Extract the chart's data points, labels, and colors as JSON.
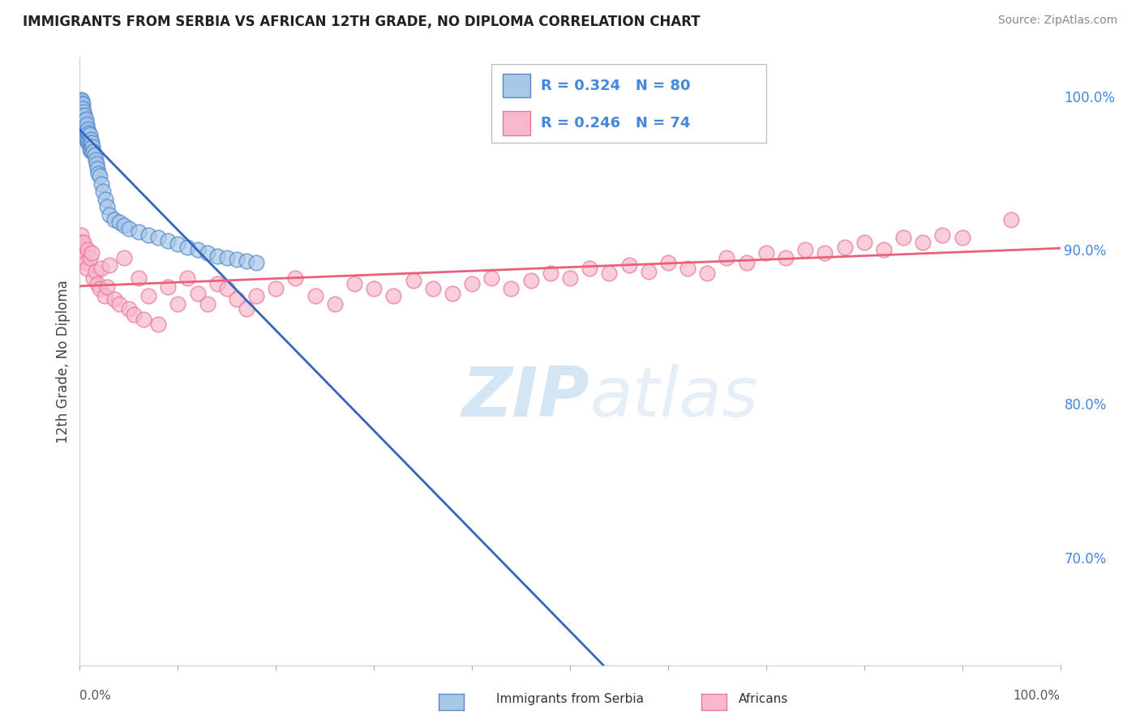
{
  "title": "IMMIGRANTS FROM SERBIA VS AFRICAN 12TH GRADE, NO DIPLOMA CORRELATION CHART",
  "source": "Source: ZipAtlas.com",
  "ylabel": "12th Grade, No Diploma",
  "serbia_color": "#a8c8e8",
  "serbia_edge_color": "#5588cc",
  "serbia_line_color": "#3366bb",
  "africa_color": "#f8b8cc",
  "africa_edge_color": "#e87898",
  "africa_line_color": "#e8607a",
  "watermark_color": "#ccddf0",
  "background_color": "#ffffff",
  "grid_color": "#cccccc",
  "right_axis_color": "#4488dd",
  "serbia_R": 0.324,
  "serbia_N": 80,
  "africa_R": 0.246,
  "africa_N": 74,
  "serbia_x": [
    0.001,
    0.001,
    0.001,
    0.001,
    0.001,
    0.001,
    0.001,
    0.002,
    0.002,
    0.002,
    0.002,
    0.002,
    0.002,
    0.002,
    0.002,
    0.002,
    0.003,
    0.003,
    0.003,
    0.003,
    0.003,
    0.003,
    0.004,
    0.004,
    0.004,
    0.004,
    0.004,
    0.005,
    0.005,
    0.005,
    0.005,
    0.006,
    0.006,
    0.006,
    0.006,
    0.007,
    0.007,
    0.007,
    0.008,
    0.008,
    0.008,
    0.009,
    0.009,
    0.01,
    0.01,
    0.01,
    0.011,
    0.011,
    0.012,
    0.012,
    0.013,
    0.014,
    0.015,
    0.016,
    0.017,
    0.018,
    0.019,
    0.02,
    0.022,
    0.024,
    0.026,
    0.028,
    0.03,
    0.035,
    0.04,
    0.045,
    0.05,
    0.06,
    0.07,
    0.08,
    0.09,
    0.1,
    0.11,
    0.12,
    0.13,
    0.14,
    0.15,
    0.16,
    0.17,
    0.18
  ],
  "serbia_y": [
    0.998,
    0.996,
    0.994,
    0.992,
    0.99,
    0.988,
    0.985,
    0.997,
    0.995,
    0.993,
    0.99,
    0.988,
    0.985,
    0.982,
    0.98,
    0.978,
    0.995,
    0.992,
    0.988,
    0.985,
    0.982,
    0.978,
    0.99,
    0.987,
    0.984,
    0.98,
    0.976,
    0.988,
    0.984,
    0.98,
    0.975,
    0.985,
    0.981,
    0.977,
    0.972,
    0.982,
    0.978,
    0.973,
    0.979,
    0.975,
    0.97,
    0.976,
    0.971,
    0.975,
    0.97,
    0.965,
    0.972,
    0.967,
    0.97,
    0.964,
    0.967,
    0.964,
    0.962,
    0.959,
    0.956,
    0.953,
    0.95,
    0.948,
    0.943,
    0.938,
    0.933,
    0.928,
    0.923,
    0.92,
    0.918,
    0.916,
    0.914,
    0.912,
    0.91,
    0.908,
    0.906,
    0.904,
    0.902,
    0.9,
    0.898,
    0.896,
    0.895,
    0.894,
    0.893,
    0.892
  ],
  "africa_x": [
    0.001,
    0.002,
    0.003,
    0.004,
    0.005,
    0.006,
    0.007,
    0.008,
    0.01,
    0.012,
    0.014,
    0.016,
    0.018,
    0.02,
    0.022,
    0.025,
    0.028,
    0.03,
    0.035,
    0.04,
    0.045,
    0.05,
    0.055,
    0.06,
    0.065,
    0.07,
    0.08,
    0.09,
    0.1,
    0.11,
    0.12,
    0.13,
    0.14,
    0.15,
    0.16,
    0.17,
    0.18,
    0.2,
    0.22,
    0.24,
    0.26,
    0.28,
    0.3,
    0.32,
    0.34,
    0.36,
    0.38,
    0.4,
    0.42,
    0.44,
    0.46,
    0.48,
    0.5,
    0.52,
    0.54,
    0.56,
    0.58,
    0.6,
    0.62,
    0.64,
    0.66,
    0.68,
    0.7,
    0.72,
    0.74,
    0.76,
    0.78,
    0.8,
    0.82,
    0.84,
    0.86,
    0.88,
    0.9,
    0.95
  ],
  "africa_y": [
    0.91,
    0.905,
    0.9,
    0.905,
    0.895,
    0.892,
    0.888,
    0.9,
    0.895,
    0.898,
    0.882,
    0.886,
    0.878,
    0.875,
    0.888,
    0.87,
    0.876,
    0.89,
    0.868,
    0.865,
    0.895,
    0.862,
    0.858,
    0.882,
    0.855,
    0.87,
    0.852,
    0.876,
    0.865,
    0.882,
    0.872,
    0.865,
    0.878,
    0.875,
    0.868,
    0.862,
    0.87,
    0.875,
    0.882,
    0.87,
    0.865,
    0.878,
    0.875,
    0.87,
    0.88,
    0.875,
    0.872,
    0.878,
    0.882,
    0.875,
    0.88,
    0.885,
    0.882,
    0.888,
    0.885,
    0.89,
    0.886,
    0.892,
    0.888,
    0.885,
    0.895,
    0.892,
    0.898,
    0.895,
    0.9,
    0.898,
    0.902,
    0.905,
    0.9,
    0.908,
    0.905,
    0.91,
    0.908,
    0.92
  ],
  "xlim": [
    0.0,
    1.0
  ],
  "ylim": [
    0.63,
    1.025
  ],
  "yticks": [
    0.7,
    0.8,
    0.9,
    1.0
  ]
}
